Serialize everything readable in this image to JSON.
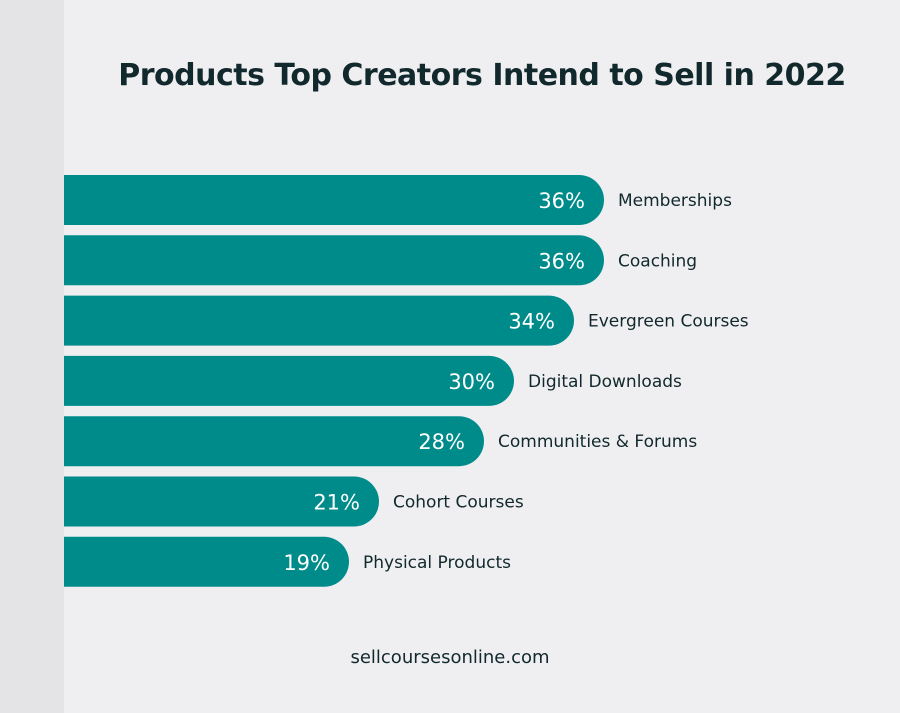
{
  "chart_data": {
    "type": "bar",
    "orientation": "horizontal",
    "title": "Products Top Creators Intend to Sell in 2022",
    "categories": [
      "Memberships",
      "Coaching",
      "Evergreen Courses",
      "Digital Downloads",
      "Communities & Forums",
      "Cohort Courses",
      "Physical Products"
    ],
    "values": [
      36,
      36,
      34,
      30,
      28,
      21,
      19
    ],
    "value_labels": [
      "36%",
      "36%",
      "34%",
      "30%",
      "28%",
      "21%",
      "19%"
    ],
    "unit": "%",
    "xlim": [
      0,
      36
    ],
    "bar_color": "#008b8b",
    "grid": false,
    "legend": "none"
  },
  "footer": {
    "url": "sellcoursesonline.com"
  },
  "colors": {
    "background": "#efeff1",
    "left_strip": "#e4e4e6",
    "bar": "#008b8b",
    "text_dark": "#11282d",
    "value_text": "#ffffff"
  }
}
